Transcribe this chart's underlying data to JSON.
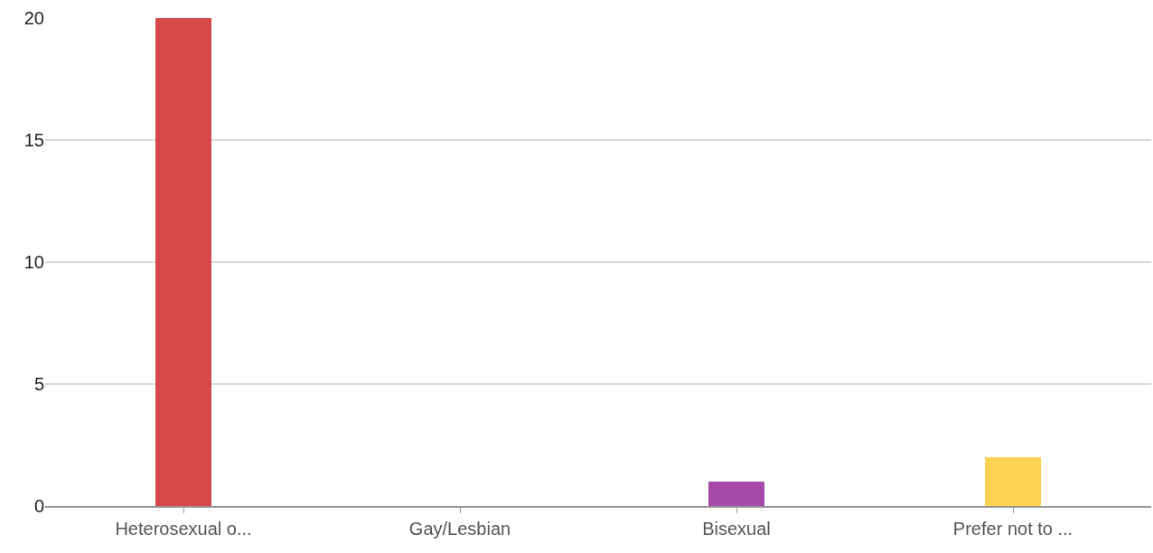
{
  "chart_data": {
    "type": "bar",
    "categories": [
      "Heterosexual o...",
      "Gay/Lesbian",
      "Bisexual",
      "Prefer not to ..."
    ],
    "values": [
      20,
      0,
      1,
      2
    ],
    "colors": [
      "#d43f40",
      "#3f7fd4",
      "#a040a4",
      "#fdd04a"
    ],
    "ylim": [
      0,
      20
    ],
    "yticks": [
      0,
      5,
      10,
      15,
      20
    ],
    "grid": "y"
  }
}
